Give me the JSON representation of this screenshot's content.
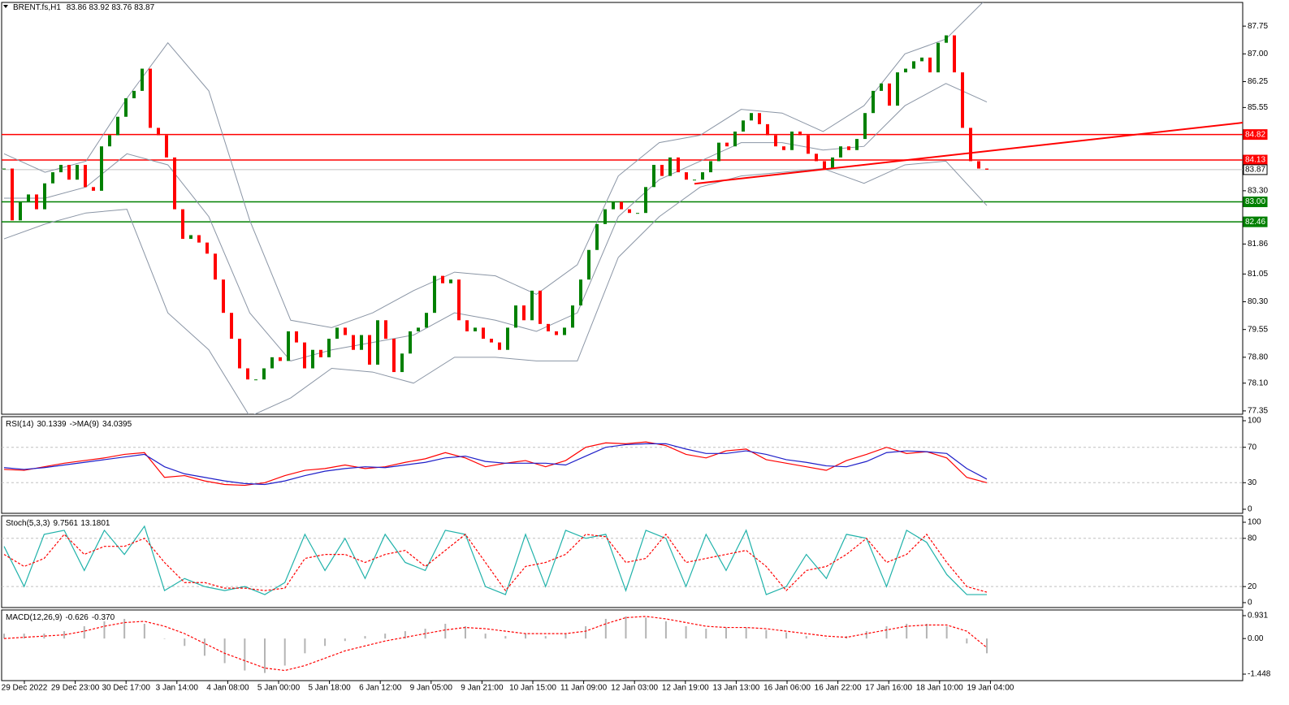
{
  "header": {
    "symbol": "BRENT.fs,H1",
    "ohlc": [
      83.86,
      83.92,
      83.76,
      83.87
    ]
  },
  "chart_data": [
    {
      "type": "candlestick",
      "closes": [
        83.9,
        82.5,
        83.0,
        83.2,
        82.8,
        83.5,
        83.8,
        84.0,
        83.6,
        84.0,
        83.4,
        83.3,
        84.5,
        84.8,
        85.3,
        85.8,
        86.0,
        86.6,
        85.0,
        84.8,
        84.2,
        82.8,
        82.0,
        82.1,
        81.9,
        81.6,
        80.9,
        80.0,
        79.3,
        78.5,
        78.2,
        78.2,
        78.5,
        78.8,
        78.7,
        79.5,
        79.2,
        78.5,
        79.0,
        78.8,
        79.3,
        79.6,
        79.4,
        79.0,
        79.4,
        78.6,
        79.8,
        79.3,
        78.4,
        78.9,
        79.5,
        79.6,
        80.0,
        81.0,
        80.8,
        80.9,
        79.8,
        79.5,
        79.6,
        79.3,
        79.2,
        79.0,
        79.6,
        80.2,
        79.8,
        80.6,
        79.7,
        79.5,
        79.4,
        79.6,
        80.2,
        80.9,
        81.7,
        82.4,
        82.8,
        83.0,
        82.8,
        82.7,
        82.7,
        83.4,
        84.0,
        83.7,
        84.2,
        83.8,
        83.6,
        83.6,
        83.8,
        84.1,
        84.6,
        84.5,
        84.9,
        85.2,
        85.4,
        85.1,
        84.8,
        84.5,
        84.4,
        84.9,
        84.8,
        84.3,
        84.1,
        83.9,
        84.2,
        84.5,
        84.4,
        84.7,
        85.4,
        86.0,
        86.2,
        85.6,
        86.5,
        86.6,
        86.8,
        86.9,
        86.5,
        87.3,
        87.5,
        86.5,
        85.0,
        84.1,
        83.9,
        83.87
      ],
      "up_color": "#008000",
      "down_color": "#ff0000",
      "bands": [
        {
          "color": "#8a95a5",
          "values": [
            84.3,
            83.8,
            84.1,
            85.8,
            87.3,
            86.0,
            82.5,
            79.8,
            79.6,
            80.0,
            80.6,
            81.1,
            81.0,
            80.5,
            81.3,
            83.7,
            84.6,
            84.8,
            85.5,
            85.4,
            84.9,
            85.6,
            87.0,
            87.4,
            88.5
          ]
        },
        {
          "color": "#8a95a5",
          "values": [
            83.1,
            83.1,
            83.4,
            84.3,
            84.0,
            82.6,
            80.0,
            78.7,
            79.0,
            79.2,
            79.4,
            80.0,
            79.8,
            79.5,
            80.0,
            82.6,
            83.6,
            84.1,
            84.6,
            84.6,
            84.4,
            84.5,
            85.6,
            86.2,
            85.7
          ]
        },
        {
          "color": "#8a95a5",
          "values": [
            82.0,
            82.4,
            82.7,
            82.8,
            80.0,
            79.0,
            77.2,
            77.7,
            78.5,
            78.4,
            78.1,
            78.8,
            78.8,
            78.7,
            78.7,
            81.5,
            82.6,
            83.4,
            83.7,
            83.8,
            83.9,
            83.5,
            84.0,
            84.1,
            82.9
          ]
        }
      ],
      "levels": [
        {
          "value": 84.82,
          "color": "#ff0000"
        },
        {
          "value": 84.13,
          "color": "#ff0000"
        },
        {
          "value": 83.87,
          "color": "#c0c0c0"
        },
        {
          "value": 83,
          "label": "83.00",
          "color": "#008000"
        },
        {
          "value": 82.46,
          "color": "#008000"
        }
      ],
      "trendline": [
        83.49,
        85.14
      ],
      "trendline_color": "#ff0000",
      "ylim": [
        77.26,
        88.39
      ],
      "yticks": [
        87.75,
        {
          "value": 87,
          "label": "87.00"
        },
        86.25,
        85.55,
        {
          "value": 83.3,
          "label": "83.30"
        },
        81.86,
        81.05,
        {
          "value": 80.3,
          "label": "80.30"
        },
        79.55,
        {
          "value": 78.8,
          "label": "78.80"
        },
        {
          "value": 78.1,
          "label": "78.10"
        },
        77.35
      ],
      "x_labels": [
        "29 Dec 2022",
        "29 Dec 23:00",
        "30 Dec 17:00",
        "3 Jan 14:00",
        "4 Jan 08:00",
        "5 Jan 00:00",
        "5 Jan 18:00",
        "6 Jan 12:00",
        "9 Jan 05:00",
        "9 Jan 21:00",
        "10 Jan 15:00",
        "11 Jan 09:00",
        "12 Jan 03:00",
        "12 Jan 19:00",
        "13 Jan 13:00",
        "16 Jan 06:00",
        "16 Jan 22:00",
        "17 Jan 16:00",
        "18 Jan 10:00",
        "19 Jan 04:00"
      ]
    },
    {
      "type": "line",
      "legend_parts": [
        "RSI(14)",
        30.1339,
        "->MA(9)",
        34.0395
      ],
      "series": [
        {
          "kind": "line",
          "color": "#ff0000",
          "values": [
            45,
            44,
            48,
            52,
            55,
            58,
            62,
            64,
            36,
            38,
            32,
            28,
            27,
            30,
            38,
            44,
            46,
            50,
            46,
            48,
            53,
            57,
            64,
            58,
            48,
            52,
            55,
            48,
            55,
            70,
            75,
            74,
            76,
            72,
            62,
            58,
            66,
            68,
            56,
            52,
            48,
            44,
            55,
            62,
            70,
            63,
            65,
            58,
            36,
            30
          ]
        },
        {
          "kind": "line",
          "color": "#1e1ec8",
          "values": [
            47,
            45,
            47,
            50,
            53,
            56,
            59,
            62,
            48,
            40,
            36,
            32,
            29,
            28,
            32,
            38,
            43,
            46,
            48,
            47,
            50,
            53,
            58,
            60,
            54,
            52,
            52,
            52,
            50,
            60,
            70,
            73,
            74,
            74,
            68,
            63,
            63,
            66,
            62,
            56,
            53,
            49,
            48,
            54,
            64,
            66,
            65,
            63,
            46,
            34
          ]
        }
      ],
      "levels": [
        70,
        30
      ],
      "ylim": [
        -4.6,
        104.6
      ],
      "yticks": [
        100,
        70,
        30,
        0
      ]
    },
    {
      "type": "line",
      "legend_parts": [
        "Stoch(5,3,3)",
        9.7561,
        13.1801
      ],
      "series": [
        {
          "kind": "line",
          "color": "#20b2aa",
          "values": [
            70,
            20,
            85,
            90,
            40,
            90,
            60,
            95,
            15,
            30,
            20,
            15,
            20,
            10,
            25,
            85,
            40,
            80,
            30,
            85,
            50,
            40,
            90,
            85,
            20,
            10,
            85,
            20,
            90,
            80,
            85,
            15,
            90,
            80,
            20,
            85,
            40,
            90,
            10,
            20,
            60,
            30,
            85,
            80,
            20,
            90,
            75,
            35,
            10,
            10
          ]
        },
        {
          "kind": "line",
          "color": "#ff0000",
          "dash": true,
          "values": [
            60,
            45,
            55,
            85,
            60,
            70,
            70,
            80,
            50,
            25,
            25,
            18,
            18,
            15,
            18,
            55,
            60,
            60,
            50,
            60,
            65,
            45,
            65,
            85,
            50,
            15,
            45,
            50,
            60,
            85,
            82,
            50,
            55,
            85,
            50,
            55,
            60,
            65,
            45,
            15,
            40,
            45,
            60,
            80,
            50,
            60,
            85,
            50,
            20,
            13
          ]
        }
      ],
      "levels": [
        80,
        20
      ],
      "ylim": [
        -6.1,
        108.1
      ],
      "yticks": [
        100,
        80,
        20,
        0
      ]
    },
    {
      "type": "line",
      "legend_parts": [
        "MACD(12,26,9)",
        -0.626,
        {
          "value": -0.37,
          "label": "-0.370"
        }
      ],
      "series": [
        {
          "kind": "bar",
          "color": "#b4b4b4",
          "values": [
            0.2,
            0.2,
            0.2,
            0.3,
            0.5,
            0.7,
            0.8,
            0.6,
            0.0,
            -0.3,
            -0.7,
            -1.0,
            -1.3,
            -1.4,
            -1.1,
            -0.6,
            -0.3,
            -0.1,
            0.1,
            0.2,
            0.3,
            0.4,
            0.6,
            0.5,
            0.2,
            0.1,
            0.2,
            0.1,
            0.2,
            0.5,
            0.8,
            0.9,
            0.85,
            0.7,
            0.5,
            0.4,
            0.45,
            0.45,
            0.35,
            0.25,
            0.1,
            0.0,
            0.1,
            0.3,
            0.5,
            0.6,
            0.6,
            0.5,
            -0.2,
            -0.6
          ]
        },
        {
          "kind": "line",
          "color": "#ff0000",
          "dash": true,
          "values": [
            0.0,
            0.05,
            0.1,
            0.15,
            0.3,
            0.5,
            0.65,
            0.7,
            0.5,
            0.2,
            -0.2,
            -0.6,
            -0.9,
            -1.2,
            -1.3,
            -1.1,
            -0.8,
            -0.5,
            -0.3,
            -0.1,
            0.05,
            0.2,
            0.35,
            0.45,
            0.4,
            0.3,
            0.2,
            0.2,
            0.2,
            0.3,
            0.6,
            0.85,
            0.9,
            0.8,
            0.65,
            0.5,
            0.45,
            0.45,
            0.4,
            0.3,
            0.2,
            0.1,
            0.05,
            0.2,
            0.35,
            0.5,
            0.55,
            0.55,
            0.3,
            -0.37
          ]
        }
      ],
      "levels": [],
      "ylim": [
        -1.712,
        1.162
      ],
      "yticks": [
        0.931,
        {
          "value": 0,
          "label": "0.00"
        },
        -1.448
      ]
    }
  ]
}
